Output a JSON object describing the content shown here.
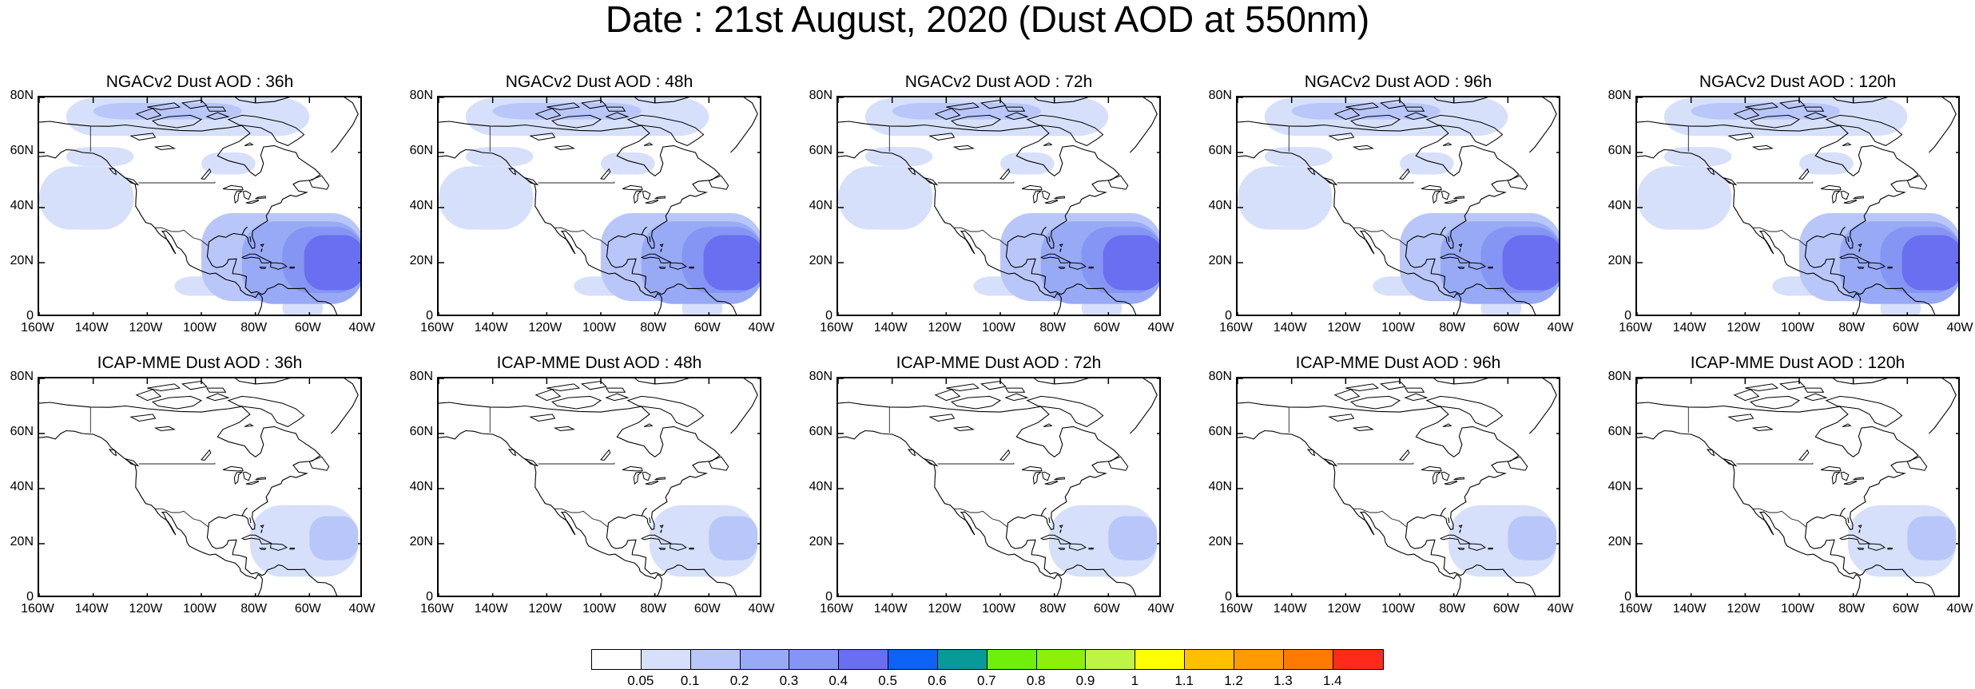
{
  "title": "Date : 21st August, 2020 (Dust AOD at 550nm)",
  "panels": [
    {
      "title": "NGACv2 Dust AOD : 36h",
      "model": "NGACv2"
    },
    {
      "title": "NGACv2 Dust AOD : 48h",
      "model": "NGACv2"
    },
    {
      "title": "NGACv2 Dust AOD : 72h",
      "model": "NGACv2"
    },
    {
      "title": "NGACv2 Dust AOD : 96h",
      "model": "NGACv2"
    },
    {
      "title": "NGACv2 Dust AOD : 120h",
      "model": "NGACv2"
    },
    {
      "title": "ICAP-MME Dust AOD : 36h",
      "model": "ICAP"
    },
    {
      "title": "ICAP-MME Dust AOD : 48h",
      "model": "ICAP"
    },
    {
      "title": "ICAP-MME Dust AOD : 72h",
      "model": "ICAP"
    },
    {
      "title": "ICAP-MME Dust AOD : 96h",
      "model": "ICAP"
    },
    {
      "title": "ICAP-MME Dust AOD : 120h",
      "model": "ICAP"
    }
  ],
  "axes": {
    "lat_labels": [
      "80N",
      "60N",
      "40N",
      "20N",
      "0"
    ],
    "lon_labels": [
      "160W",
      "140W",
      "120W",
      "100W",
      "80W",
      "60W",
      "40W"
    ],
    "lat_range": [
      0,
      80
    ],
    "lon_range": [
      -160,
      -40
    ]
  },
  "colorbar": {
    "labels": [
      "0.05",
      "0.1",
      "0.2",
      "0.3",
      "0.4",
      "0.5",
      "0.6",
      "0.7",
      "0.8",
      "0.9",
      "1",
      "1.1",
      "1.2",
      "1.3",
      "1.4"
    ],
    "colors": [
      "#ffffff",
      "#d6e0fb",
      "#b9c6f9",
      "#98aaf5",
      "#8595f3",
      "#6a6ef0",
      "#0d62f7",
      "#079a98",
      "#6ef00a",
      "#8ef00a",
      "#bef545",
      "#ffff00",
      "#ffc000",
      "#ff9b00",
      "#ff7a00",
      "#ff2a1a"
    ]
  }
}
